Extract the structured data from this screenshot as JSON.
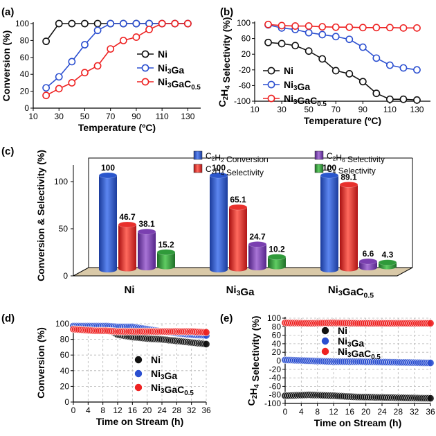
{
  "colors": {
    "ni": "#111111",
    "ni3ga": "#2b4fd0",
    "ni3gac": "#ee2222",
    "c2h2": "#2a56cc",
    "c2h4": "#e8302c",
    "c2h6": "#7a3fb0",
    "c4": "#2f9a3a"
  },
  "panels": [
    {
      "id": "a",
      "label": "(a)"
    },
    {
      "id": "b",
      "label": "(b)"
    },
    {
      "id": "c",
      "label": "(c)"
    },
    {
      "id": "d",
      "label": "(d)"
    },
    {
      "id": "e",
      "label": "(e)"
    }
  ],
  "chart_data": [
    {
      "id": "a",
      "type": "line",
      "xlabel": "Temperature (ºC)",
      "ylabel": "Conversion (%)",
      "xlim": [
        10,
        140
      ],
      "ylim": [
        0,
        100
      ],
      "xticks": [
        "10",
        "30",
        "50",
        "70",
        "90",
        "110",
        "130"
      ],
      "yticks": [
        "0",
        "20",
        "40",
        "60",
        "80",
        "100"
      ],
      "legend": "right",
      "series": [
        {
          "name": "Ni",
          "key": "ni",
          "x": [
            20,
            30,
            40,
            50,
            60,
            70,
            80,
            90,
            100,
            110,
            120,
            130
          ],
          "y": [
            79,
            100,
            100,
            100,
            100,
            100,
            100,
            100,
            100,
            100,
            100,
            100
          ]
        },
        {
          "name": "Ni3Ga",
          "key": "ni3ga",
          "x": [
            20,
            30,
            40,
            50,
            60,
            70,
            80,
            90,
            100,
            110,
            120,
            130
          ],
          "y": [
            24,
            37,
            55,
            75,
            92,
            100,
            100,
            100,
            100,
            100,
            100,
            100
          ]
        },
        {
          "name": "Ni3GaC0.5",
          "key": "ni3gac",
          "x": [
            20,
            30,
            40,
            50,
            60,
            70,
            80,
            90,
            100,
            110,
            120,
            130
          ],
          "y": [
            15,
            23,
            30,
            42,
            50,
            70,
            80,
            84,
            93,
            100,
            100,
            100
          ]
        }
      ]
    },
    {
      "id": "b",
      "type": "line",
      "xlabel": "Temperature (ºC)",
      "ylabel": "C2H4 Selectivity (%)",
      "xlim": [
        10,
        140
      ],
      "ylim": [
        -100,
        100
      ],
      "xticks": [
        "10",
        "30",
        "50",
        "70",
        "90",
        "110",
        "130"
      ],
      "yticks": [
        "-100",
        "-60",
        "-20",
        "20",
        "60",
        "100"
      ],
      "legend": "left",
      "series": [
        {
          "name": "Ni",
          "key": "ni",
          "x": [
            20,
            30,
            40,
            50,
            60,
            70,
            80,
            90,
            100,
            110,
            120,
            130
          ],
          "y": [
            50,
            47,
            42,
            28,
            8,
            -22,
            -30,
            -50,
            -80,
            -95,
            -95,
            -97
          ]
        },
        {
          "name": "Ni3Ga",
          "key": "ni3ga",
          "x": [
            20,
            30,
            40,
            50,
            60,
            70,
            80,
            90,
            100,
            110,
            120,
            130
          ],
          "y": [
            95,
            87,
            83,
            75,
            70,
            65,
            58,
            38,
            10,
            -8,
            -15,
            -20
          ]
        },
        {
          "name": "Ni3GaC0.5",
          "key": "ni3gac",
          "x": [
            20,
            30,
            40,
            50,
            60,
            70,
            80,
            90,
            100,
            110,
            120,
            130
          ],
          "y": [
            96,
            93,
            92,
            92,
            90,
            89,
            89,
            88,
            88,
            88,
            87,
            87
          ]
        }
      ]
    },
    {
      "id": "c",
      "type": "bar",
      "ylabel": "Conversion & Selectivity (%)",
      "ylim": [
        0,
        125
      ],
      "yticks": [
        "0",
        "50",
        "100"
      ],
      "categories": [
        "Ni",
        "Ni3Ga",
        "Ni3GaC0.5"
      ],
      "legend": "top",
      "series": [
        {
          "name": "C2H2 Conversion",
          "key": "c2h2",
          "values": [
            100,
            100,
            100
          ],
          "labels": [
            "100",
            "100",
            "100"
          ]
        },
        {
          "name": "C2H4 Selectivity",
          "key": "c2h4",
          "values": [
            46.7,
            65.1,
            89.1
          ],
          "labels": [
            "46.7",
            "65.1",
            "89.1"
          ]
        },
        {
          "name": "C2H6 Selectivity",
          "key": "c2h6",
          "values": [
            38.1,
            24.7,
            6.6
          ],
          "labels": [
            "38.1",
            "24.7",
            "6.6"
          ]
        },
        {
          "name": "C4 Selectivity",
          "key": "c4",
          "values": [
            15.2,
            10.2,
            4.3
          ],
          "labels": [
            "15.2",
            "10.2",
            "4.3"
          ]
        }
      ]
    },
    {
      "id": "d",
      "type": "scatter",
      "xlabel": "Time on Stream (h)",
      "ylabel": "Conversion (%)",
      "xlim": [
        0,
        36
      ],
      "ylim": [
        0,
        100
      ],
      "xticks": [
        "0",
        "4",
        "8",
        "12",
        "16",
        "20",
        "24",
        "28",
        "32",
        "36"
      ],
      "yticks": [
        "0",
        "20",
        "40",
        "60",
        "80",
        "100"
      ],
      "grid": true,
      "legend": "center",
      "series": [
        {
          "name": "Ni",
          "key": "ni",
          "x": [
            0,
            6,
            9,
            12,
            16,
            20,
            24,
            28,
            32,
            36
          ],
          "y": [
            96,
            96,
            94,
            86,
            83,
            81,
            80,
            78,
            76,
            74
          ]
        },
        {
          "name": "Ni3Ga",
          "key": "ni3ga",
          "x": [
            0,
            6,
            9,
            12,
            16,
            20,
            24,
            28,
            32,
            36
          ],
          "y": [
            97,
            97,
            97,
            96,
            96,
            93,
            90,
            88,
            86,
            85
          ]
        },
        {
          "name": "Ni3GaC0.5",
          "key": "ni3gac",
          "x": [
            0,
            6,
            9,
            12,
            16,
            20,
            24,
            28,
            32,
            36
          ],
          "y": [
            93,
            91,
            91,
            90,
            90,
            90,
            90,
            90,
            90,
            89
          ]
        }
      ]
    },
    {
      "id": "e",
      "type": "scatter",
      "xlabel": "Time on Stream (h)",
      "ylabel": "C2H4 Selectivity (%)",
      "xlim": [
        0,
        36
      ],
      "ylim": [
        -100,
        100
      ],
      "xticks": [
        "0",
        "4",
        "8",
        "12",
        "16",
        "20",
        "24",
        "28",
        "32",
        "36"
      ],
      "yticks": [
        "-100",
        "-80",
        "-60",
        "-40",
        "-20",
        "0",
        "20",
        "40",
        "60",
        "80",
        "100"
      ],
      "grid": true,
      "legend": "center",
      "series": [
        {
          "name": "Ni",
          "key": "ni",
          "x": [
            0,
            6,
            12,
            18,
            24,
            30,
            36
          ],
          "y": [
            -82,
            -80,
            -82,
            -85,
            -86,
            -87,
            -88
          ]
        },
        {
          "name": "Ni3Ga",
          "key": "ni3ga",
          "x": [
            0,
            6,
            12,
            18,
            24,
            30,
            36
          ],
          "y": [
            2,
            0,
            -2,
            -2,
            -3,
            -4,
            -5
          ]
        },
        {
          "name": "Ni3GaC0.5",
          "key": "ni3gac",
          "x": [
            0,
            6,
            12,
            18,
            24,
            30,
            36
          ],
          "y": [
            89,
            88,
            89,
            88,
            88,
            88,
            88
          ]
        }
      ]
    }
  ]
}
